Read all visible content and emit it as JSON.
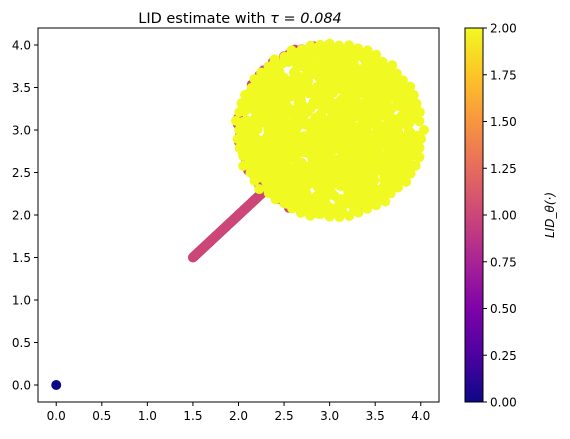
{
  "chart_data": {
    "type": "scatter",
    "title_prefix": "LID estimate with ",
    "title_math": "τ = 0.084",
    "xlabel": "",
    "ylabel": "",
    "xlim": [
      -0.2,
      4.2
    ],
    "ylim": [
      -0.2,
      4.2
    ],
    "x_ticks": [
      "0.0",
      "0.5",
      "1.0",
      "1.5",
      "2.0",
      "2.5",
      "3.0",
      "3.5",
      "4.0"
    ],
    "x_tick_values": [
      0.0,
      0.5,
      1.0,
      1.5,
      2.0,
      2.5,
      3.0,
      3.5,
      4.0
    ],
    "y_ticks": [
      "0.0",
      "0.5",
      "1.0",
      "1.5",
      "2.0",
      "2.5",
      "3.0",
      "3.5",
      "4.0"
    ],
    "y_tick_values": [
      0.0,
      0.5,
      1.0,
      1.5,
      2.0,
      2.5,
      3.0,
      3.5,
      4.0
    ],
    "grid": false,
    "colormap": "plasma",
    "colorbar": {
      "range": [
        0.0,
        2.0
      ],
      "ticks": [
        "0.00",
        "0.25",
        "0.50",
        "0.75",
        "1.00",
        "1.25",
        "1.50",
        "1.75",
        "2.00"
      ],
      "tick_values": [
        0.0,
        0.25,
        0.5,
        0.75,
        1.0,
        1.25,
        1.5,
        1.75,
        2.0
      ],
      "label": "LID_θ(·)"
    },
    "groups": [
      {
        "shape": "point",
        "x": 0.0,
        "y": 0.0,
        "lid": 0.0,
        "color": "#0d0887"
      },
      {
        "shape": "line",
        "x_range": [
          1.5,
          2.35
        ],
        "y_range": [
          1.5,
          2.35
        ],
        "lid": 1.0,
        "color": "#cc4778"
      },
      {
        "shape": "disk",
        "center": [
          3.0,
          3.0
        ],
        "radius": 1.0,
        "lid": 2.0,
        "color": "#f0f921",
        "edge_lid": 1.0,
        "edge_color": "#cc4778"
      }
    ]
  }
}
